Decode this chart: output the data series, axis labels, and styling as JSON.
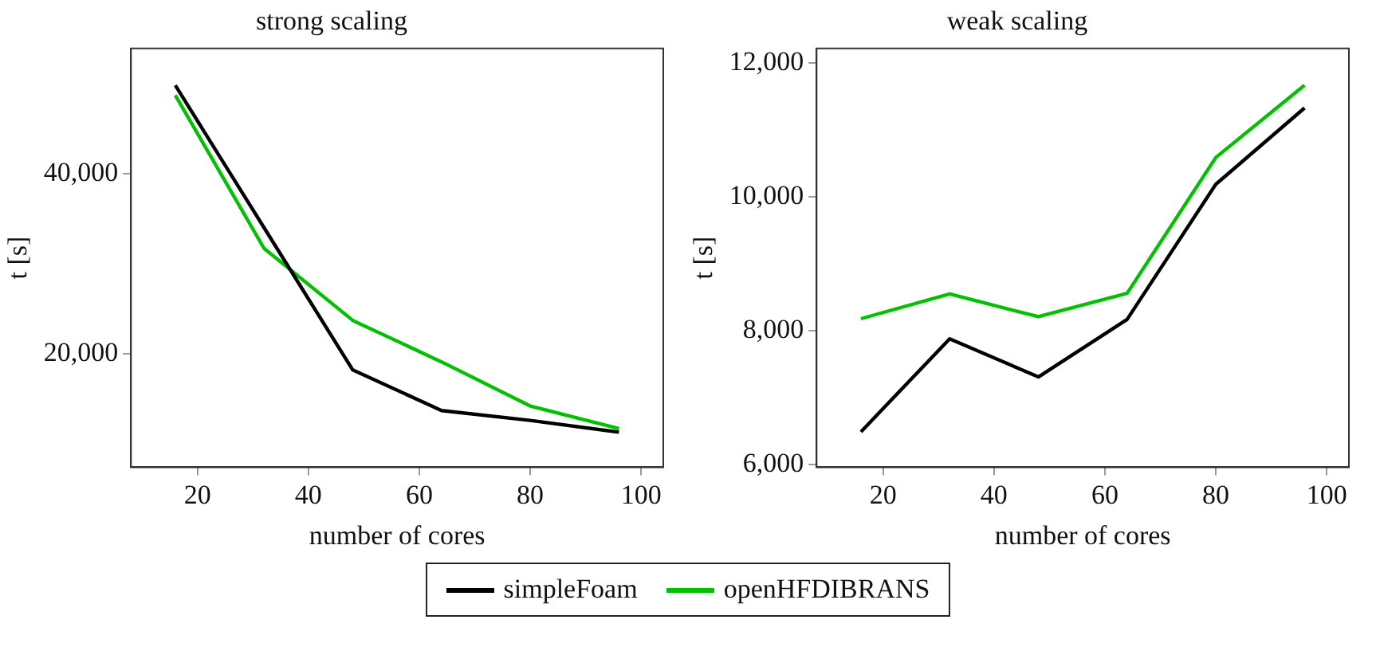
{
  "chart_data": [
    {
      "type": "line",
      "title": "strong scaling",
      "xlabel": "number of cores",
      "ylabel": "t [s]",
      "x": [
        16,
        32,
        48,
        64,
        80,
        96
      ],
      "xlim": [
        8,
        104
      ],
      "xticks": [
        20,
        40,
        60,
        80,
        100
      ],
      "ylim": [
        7400,
        53900
      ],
      "yticks": [
        {
          "value": 20000,
          "label": "20,000"
        },
        {
          "value": 40000,
          "label": "40,000"
        }
      ],
      "grid": false,
      "legend": "bottom",
      "marker": "none",
      "line_style": "solid",
      "series": [
        {
          "name": "simpleFoam",
          "color": "#000000",
          "values": [
            49800,
            34000,
            18200,
            13700,
            12600,
            11300
          ]
        },
        {
          "name": "openHFDIBRANS",
          "color": "#00c000",
          "values": [
            48700,
            31700,
            23700,
            19100,
            14200,
            11700
          ]
        }
      ]
    },
    {
      "type": "line",
      "title": "weak scaling",
      "xlabel": "number of cores",
      "ylabel": "t [s]",
      "x": [
        16,
        32,
        48,
        64,
        80,
        96
      ],
      "xlim": [
        8,
        104
      ],
      "xticks": [
        20,
        40,
        60,
        80,
        100
      ],
      "ylim": [
        5960,
        12220
      ],
      "yticks": [
        {
          "value": 6000,
          "label": "6,000"
        },
        {
          "value": 8000,
          "label": "8,000"
        },
        {
          "value": 10000,
          "label": "10,000"
        },
        {
          "value": 12000,
          "label": "12,000"
        }
      ],
      "grid": false,
      "marker": "none",
      "line_style": "solid",
      "series": [
        {
          "color": "#000000",
          "values": [
            6490,
            7880,
            7310,
            8170,
            10190,
            11330
          ]
        },
        {
          "color": "#00c000",
          "values": [
            8180,
            8550,
            8210,
            8560,
            10590,
            11670
          ]
        }
      ]
    }
  ]
}
